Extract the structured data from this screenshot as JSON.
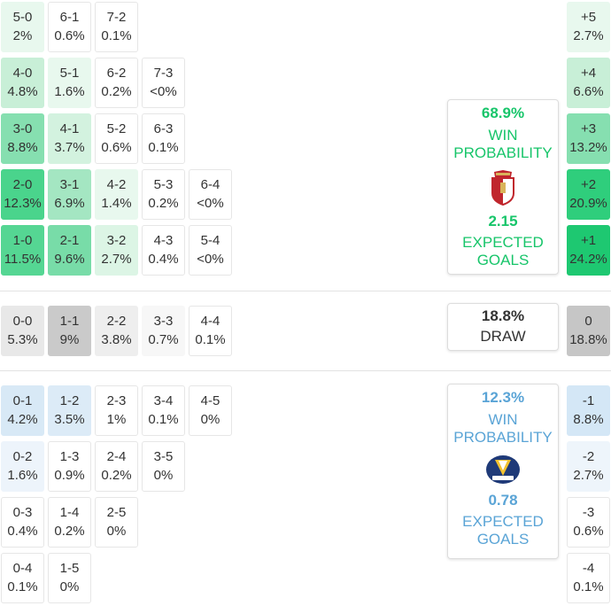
{
  "colors": {
    "home_accent": "#17c56a",
    "away_accent": "#5aa4d6",
    "draw_text": "#333333",
    "green_light": "#e9f8ef",
    "green_mid": "#b6ecc9",
    "green_dark": "#7fddac",
    "green_darker": "#37d083",
    "blue_light": "#eaf3fa",
    "blue_mid": "#d6e8f6",
    "grey_light": "#efefef",
    "grey_mid": "#c9c9c9"
  },
  "home_scores": [
    {
      "score": "5-0",
      "pct": "2%",
      "bg": "#e8f8ee"
    },
    {
      "score": "6-1",
      "pct": "0.6%",
      "bg": "#ffffff"
    },
    {
      "score": "7-2",
      "pct": "0.1%",
      "bg": "#ffffff"
    },
    {
      "score": "4-0",
      "pct": "4.8%",
      "bg": "#c8efd7"
    },
    {
      "score": "5-1",
      "pct": "1.6%",
      "bg": "#e8f8ee"
    },
    {
      "score": "6-2",
      "pct": "0.2%",
      "bg": "#ffffff"
    },
    {
      "score": "7-3",
      "pct": "<0%",
      "bg": "#ffffff"
    },
    {
      "score": "3-0",
      "pct": "8.8%",
      "bg": "#86dfb0"
    },
    {
      "score": "4-1",
      "pct": "3.7%",
      "bg": "#d3f2df"
    },
    {
      "score": "5-2",
      "pct": "0.6%",
      "bg": "#ffffff"
    },
    {
      "score": "6-3",
      "pct": "0.1%",
      "bg": "#ffffff"
    },
    {
      "score": "2-0",
      "pct": "12.3%",
      "bg": "#4ad48c"
    },
    {
      "score": "3-1",
      "pct": "6.9%",
      "bg": "#a4e6c2"
    },
    {
      "score": "4-2",
      "pct": "1.4%",
      "bg": "#e8f8ee"
    },
    {
      "score": "5-3",
      "pct": "0.2%",
      "bg": "#ffffff"
    },
    {
      "score": "6-4",
      "pct": "<0%",
      "bg": "#ffffff"
    },
    {
      "score": "1-0",
      "pct": "11.5%",
      "bg": "#55d693"
    },
    {
      "score": "2-1",
      "pct": "9.6%",
      "bg": "#78dca8"
    },
    {
      "score": "3-2",
      "pct": "2.7%",
      "bg": "#dcf5e5"
    },
    {
      "score": "4-3",
      "pct": "0.4%",
      "bg": "#ffffff"
    },
    {
      "score": "5-4",
      "pct": "<0%",
      "bg": "#ffffff"
    }
  ],
  "draw_scores": [
    {
      "score": "0-0",
      "pct": "5.3%",
      "bg": "#e8e8e8"
    },
    {
      "score": "1-1",
      "pct": "9%",
      "bg": "#cacaca"
    },
    {
      "score": "2-2",
      "pct": "3.8%",
      "bg": "#eeeeee"
    },
    {
      "score": "3-3",
      "pct": "0.7%",
      "bg": "#f7f7f7"
    },
    {
      "score": "4-4",
      "pct": "0.1%",
      "bg": "#ffffff"
    }
  ],
  "away_scores": [
    {
      "score": "0-1",
      "pct": "4.2%",
      "bg": "#d8e9f6"
    },
    {
      "score": "1-2",
      "pct": "3.5%",
      "bg": "#dcebf7"
    },
    {
      "score": "2-3",
      "pct": "1%",
      "bg": "#ffffff"
    },
    {
      "score": "3-4",
      "pct": "0.1%",
      "bg": "#ffffff"
    },
    {
      "score": "4-5",
      "pct": "0%",
      "bg": "#ffffff"
    },
    {
      "score": "0-2",
      "pct": "1.6%",
      "bg": "#edf4fb"
    },
    {
      "score": "1-3",
      "pct": "0.9%",
      "bg": "#ffffff"
    },
    {
      "score": "2-4",
      "pct": "0.2%",
      "bg": "#ffffff"
    },
    {
      "score": "3-5",
      "pct": "0%",
      "bg": "#ffffff"
    },
    {
      "score": "0-3",
      "pct": "0.4%",
      "bg": "#ffffff"
    },
    {
      "score": "1-4",
      "pct": "0.2%",
      "bg": "#ffffff"
    },
    {
      "score": "2-5",
      "pct": "0%",
      "bg": "#ffffff"
    },
    {
      "score": "0-4",
      "pct": "0.1%",
      "bg": "#ffffff"
    },
    {
      "score": "1-5",
      "pct": "0%",
      "bg": "#ffffff"
    }
  ],
  "margins": [
    {
      "label": "+5",
      "pct": "2.7%",
      "bg": "#e8f8ee"
    },
    {
      "label": "+4",
      "pct": "6.6%",
      "bg": "#c8efd7"
    },
    {
      "label": "+3",
      "pct": "13.2%",
      "bg": "#86dfb0"
    },
    {
      "label": "+2",
      "pct": "20.9%",
      "bg": "#2fce7c"
    },
    {
      "label": "+1",
      "pct": "24.2%",
      "bg": "#1ec871"
    },
    {
      "label": "0",
      "pct": "18.8%",
      "bg": "#c6c6c6"
    },
    {
      "label": "-1",
      "pct": "8.8%",
      "bg": "#d4e7f6"
    },
    {
      "label": "-2",
      "pct": "2.7%",
      "bg": "#eef5fb"
    },
    {
      "label": "-3",
      "pct": "0.6%",
      "bg": "#ffffff"
    },
    {
      "label": "-4",
      "pct": "0.1%",
      "bg": "#ffffff"
    }
  ],
  "home_card": {
    "win_pct": "68.9%",
    "win_label_1": "WIN",
    "win_label_2": "PROBABILITY",
    "xg_value": "2.15",
    "xg_label_1": "EXPECTED",
    "xg_label_2": "GOALS"
  },
  "draw_card": {
    "pct": "18.8%",
    "label": "DRAW"
  },
  "away_card": {
    "win_pct": "12.3%",
    "win_label_1": "WIN",
    "win_label_2": "PROBABILITY",
    "xg_value": "0.78",
    "xg_label_1": "EXPECTED",
    "xg_label_2": "GOALS"
  }
}
